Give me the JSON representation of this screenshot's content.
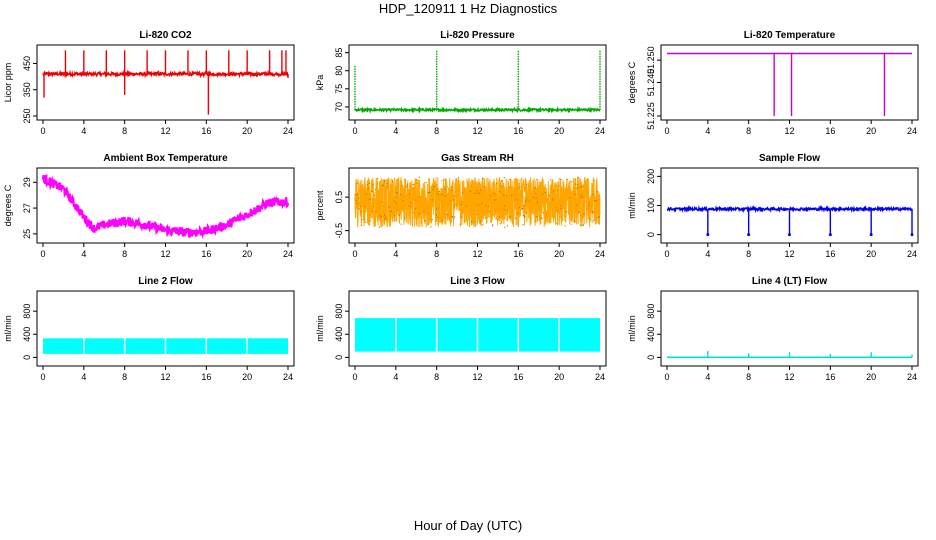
{
  "figure": {
    "title": "HDP_120911  1 Hz Diagnostics",
    "xlabel": "Hour of Day (UTC)"
  },
  "chart_data": [
    {
      "type": "line",
      "title": "Li-820 CO2",
      "xlabel": "",
      "ylabel": "Licor ppm",
      "color": "#ee0000",
      "x_ticks": [
        "0",
        "4",
        "8",
        "12",
        "16",
        "20",
        "24"
      ],
      "xlim": [
        0,
        24
      ],
      "y_ticks": [
        250,
        350,
        450
      ],
      "y_tick_labels": [
        "250",
        "350",
        "450"
      ],
      "ylim": [
        250,
        505
      ],
      "baseline": 410,
      "noise": 6,
      "spikes": [
        {
          "x": 2.2,
          "y": 500
        },
        {
          "x": 4.0,
          "y": 500
        },
        {
          "x": 6.2,
          "y": 500
        },
        {
          "x": 8.0,
          "y": 500
        },
        {
          "x": 10.2,
          "y": 500
        },
        {
          "x": 12.0,
          "y": 500
        },
        {
          "x": 14.2,
          "y": 500
        },
        {
          "x": 16.0,
          "y": 500
        },
        {
          "x": 18.2,
          "y": 500
        },
        {
          "x": 20.0,
          "y": 500
        },
        {
          "x": 22.2,
          "y": 500
        },
        {
          "x": 23.4,
          "y": 500
        },
        {
          "x": 23.8,
          "y": 500
        }
      ],
      "dips": [
        {
          "x": 0.1,
          "y": 320
        },
        {
          "x": 8.0,
          "y": 330
        },
        {
          "x": 16.2,
          "y": 255
        },
        {
          "x": 24.0,
          "y": 395
        }
      ]
    },
    {
      "type": "line",
      "title": "Li-820 Pressure",
      "xlabel": "",
      "ylabel": "kPa",
      "color": "#00aa00",
      "x_ticks": [
        "0",
        "4",
        "8",
        "12",
        "16",
        "20",
        "24"
      ],
      "xlim": [
        0,
        24
      ],
      "y_ticks": [
        70,
        75,
        80,
        85
      ],
      "y_tick_labels": [
        "70",
        "75",
        "80",
        "85"
      ],
      "ylim": [
        67.5,
        86
      ],
      "baseline": 69.2,
      "noise": 0.3,
      "spikes": [
        {
          "x": 0.0,
          "y": 81.5
        },
        {
          "x": 8.0,
          "y": 85.5
        },
        {
          "x": 16.0,
          "y": 85.5
        },
        {
          "x": 24.0,
          "y": 85.5
        }
      ],
      "dips": []
    },
    {
      "type": "line",
      "title": "Li-820 Temperature",
      "xlabel": "",
      "ylabel": "degrees C",
      "color": "#cc00cc",
      "x_ticks": [
        "0",
        "4",
        "8",
        "12",
        "16",
        "20",
        "24"
      ],
      "xlim": [
        0,
        24
      ],
      "y_ticks": [
        51.225,
        51.24,
        51.25
      ],
      "y_tick_labels": [
        "51.225",
        "51.240",
        "51.250"
      ],
      "ylim": [
        51.225,
        51.255
      ],
      "baseline": 51.253,
      "noise": 0,
      "spikes": [],
      "dips": [
        {
          "x": 10.5,
          "y": 51.225
        },
        {
          "x": 12.2,
          "y": 51.225
        },
        {
          "x": 21.3,
          "y": 51.225
        }
      ]
    },
    {
      "type": "line",
      "title": "Ambient Box Temperature",
      "xlabel": "",
      "ylabel": "degrees C",
      "color": "#ff00ff",
      "x_ticks": [
        "0",
        "4",
        "8",
        "12",
        "16",
        "20",
        "24"
      ],
      "xlim": [
        0,
        24
      ],
      "y_ticks": [
        25,
        27,
        29
      ],
      "y_tick_labels": [
        "25",
        "27",
        "29"
      ],
      "ylim": [
        24.6,
        29.8
      ],
      "profile": [
        [
          0,
          29.3
        ],
        [
          2,
          28.5
        ],
        [
          4,
          26.3
        ],
        [
          5,
          25.4
        ],
        [
          6,
          25.7
        ],
        [
          8,
          26.0
        ],
        [
          10,
          25.7
        ],
        [
          12,
          25.3
        ],
        [
          14,
          25.1
        ],
        [
          16,
          25.2
        ],
        [
          18,
          25.7
        ],
        [
          20,
          26.5
        ],
        [
          22,
          27.4
        ],
        [
          24,
          27.5
        ]
      ],
      "noise": 0.35
    },
    {
      "type": "line",
      "title": "Gas Stream RH",
      "xlabel": "",
      "ylabel": "percent",
      "color": "#ffa500",
      "x_ticks": [
        "0",
        "4",
        "8",
        "12",
        "16",
        "20",
        "24"
      ],
      "xlim": [
        0,
        24
      ],
      "y_ticks": [
        -0.5,
        0.5
      ],
      "y_tick_labels": [
        "-0.5",
        "0.5"
      ],
      "ylim": [
        -0.75,
        1.25
      ],
      "baseline": 0.35,
      "noise": 0.75
    },
    {
      "type": "line",
      "title": "Sample Flow",
      "xlabel": "",
      "ylabel": "ml/min",
      "color": "#0000ee",
      "x_ticks": [
        "0",
        "4",
        "8",
        "12",
        "16",
        "20",
        "24"
      ],
      "xlim": [
        0,
        24
      ],
      "y_ticks": [
        0,
        100,
        200
      ],
      "y_tick_labels": [
        "0",
        "100",
        "200"
      ],
      "ylim": [
        -15,
        215
      ],
      "baseline": 88,
      "noise": 4,
      "spikes": [],
      "dips": [
        {
          "x": 4.0,
          "y": 0
        },
        {
          "x": 8.0,
          "y": 0
        },
        {
          "x": 12.0,
          "y": 0
        },
        {
          "x": 16.0,
          "y": 0
        },
        {
          "x": 20.0,
          "y": 0
        },
        {
          "x": 24.0,
          "y": 0
        }
      ]
    },
    {
      "type": "area",
      "title": "Line 2 Flow",
      "xlabel": "",
      "ylabel": "ml/min",
      "color": "#00ffff",
      "x_ticks": [
        "0",
        "4",
        "8",
        "12",
        "16",
        "20",
        "24"
      ],
      "xlim": [
        0,
        24
      ],
      "y_ticks": [
        0,
        400,
        800
      ],
      "y_tick_labels": [
        "0",
        "400",
        "800"
      ],
      "ylim": [
        -80,
        1080
      ],
      "band": [
        60,
        330
      ],
      "gaps": [
        4.0,
        8.0,
        12.0,
        16.0,
        20.0
      ]
    },
    {
      "type": "area",
      "title": "Line 3 Flow",
      "xlabel": "",
      "ylabel": "ml/min",
      "color": "#00ffff",
      "x_ticks": [
        "0",
        "4",
        "8",
        "12",
        "16",
        "20",
        "24"
      ],
      "xlim": [
        0,
        24
      ],
      "y_ticks": [
        0,
        400,
        800
      ],
      "y_tick_labels": [
        "0",
        "400",
        "800"
      ],
      "ylim": [
        -80,
        1080
      ],
      "band": [
        100,
        680
      ],
      "gaps": [
        4.0,
        8.0,
        12.0,
        16.0,
        20.0
      ]
    },
    {
      "type": "line",
      "title": "Line 4 (LT) Flow",
      "xlabel": "",
      "ylabel": "ml/min",
      "color": "#00dddd",
      "x_ticks": [
        "0",
        "4",
        "8",
        "12",
        "16",
        "20",
        "24"
      ],
      "xlim": [
        0,
        24
      ],
      "y_ticks": [
        0,
        400,
        800
      ],
      "y_tick_labels": [
        "0",
        "400",
        "800"
      ],
      "ylim": [
        -80,
        1080
      ],
      "baseline": 2,
      "noise": 0,
      "spikes": [
        {
          "x": 4.0,
          "y": 110
        },
        {
          "x": 8.0,
          "y": 70
        },
        {
          "x": 12.0,
          "y": 90
        },
        {
          "x": 16.0,
          "y": 60
        },
        {
          "x": 20.0,
          "y": 90
        },
        {
          "x": 24.0,
          "y": 50
        }
      ],
      "dips": []
    }
  ]
}
